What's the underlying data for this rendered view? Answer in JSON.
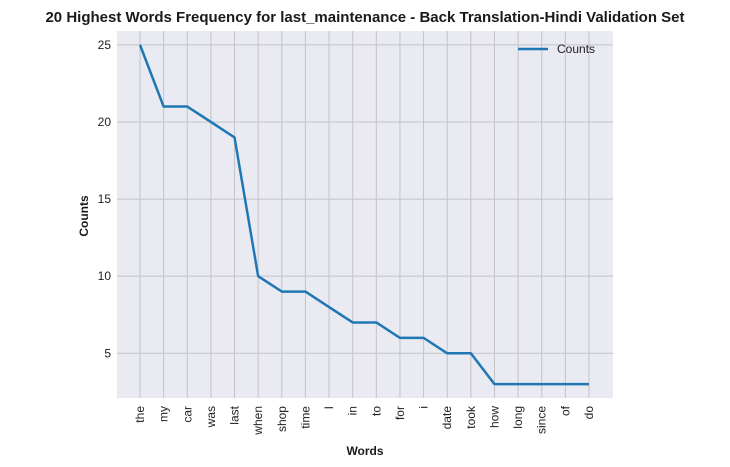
{
  "chart_data": {
    "type": "line",
    "title": "20 Highest Words Frequency for last_maintenance - Back Translation-Hindi Validation Set",
    "xlabel": "Words",
    "ylabel": "Counts",
    "categories": [
      "the",
      "my",
      "car",
      "was",
      "last",
      "when",
      "shop",
      "time",
      "I",
      "in",
      "to",
      "for",
      "i",
      "date",
      "took",
      "how",
      "long",
      "since",
      "of",
      "do"
    ],
    "series": [
      {
        "name": "Counts",
        "values": [
          25,
          21,
          21,
          20,
          19,
          10,
          9,
          9,
          8,
          7,
          7,
          6,
          6,
          5,
          5,
          3,
          3,
          3,
          3,
          3
        ]
      }
    ],
    "yticks": [
      5,
      10,
      15,
      20,
      25
    ],
    "ylim": [
      2.1,
      25.9
    ],
    "grid": true,
    "legend_position": "top-right",
    "colors": {
      "line": "#1f77b4",
      "plot_bg": "#e9eaf2",
      "grid": "#c3c3c8"
    }
  }
}
